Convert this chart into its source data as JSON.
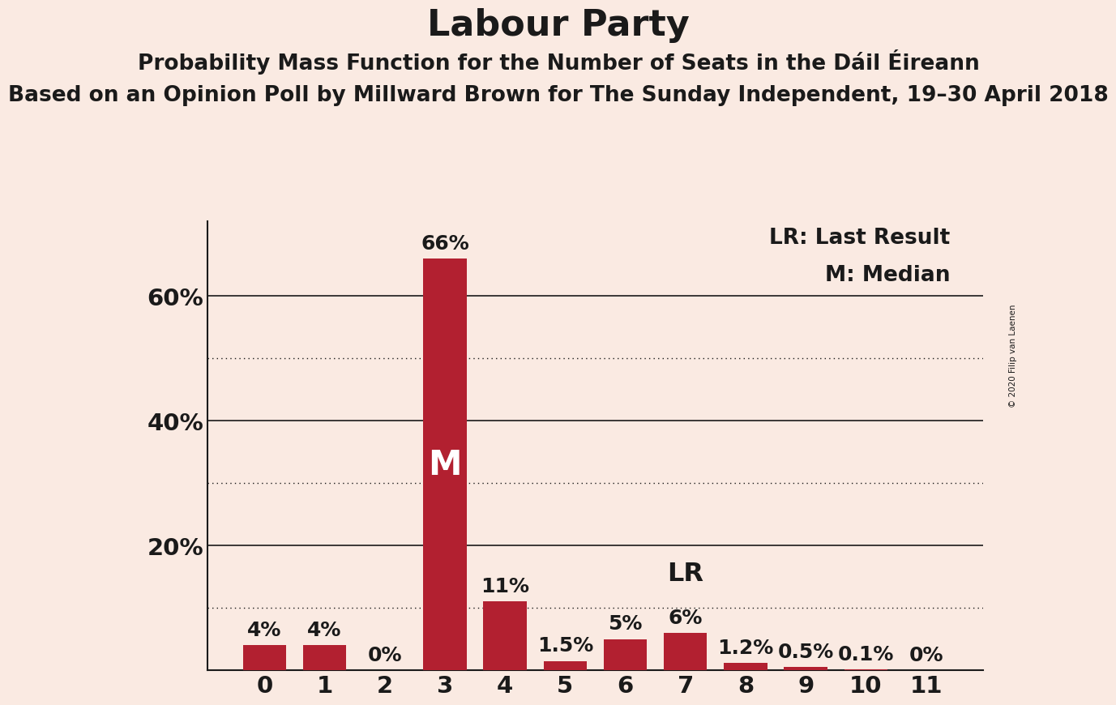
{
  "title": "Labour Party",
  "subtitle": "Probability Mass Function for the Number of Seats in the Dáil Éireann",
  "subtitle2": "Based on an Opinion Poll by Millward Brown for The Sunday Independent, 19–30 April 2018",
  "copyright": "© 2020 Filip van Laenen",
  "categories": [
    0,
    1,
    2,
    3,
    4,
    5,
    6,
    7,
    8,
    9,
    10,
    11
  ],
  "values": [
    4.0,
    4.0,
    0.0,
    66.0,
    11.0,
    1.5,
    5.0,
    6.0,
    1.2,
    0.5,
    0.1,
    0.0
  ],
  "bar_color": "#b22030",
  "background_color": "#faeae2",
  "text_color": "#1a1a1a",
  "bar_labels": [
    "4%",
    "4%",
    "0%",
    "66%",
    "11%",
    "1.5%",
    "5%",
    "6%",
    "1.2%",
    "0.5%",
    "0.1%",
    "0%"
  ],
  "median_bar": 3,
  "lr_bar": 7,
  "ylim": [
    0,
    72
  ],
  "yticks": [
    0,
    20,
    40,
    60
  ],
  "legend_lr": "LR: Last Result",
  "legend_m": "M: Median",
  "title_fontsize": 32,
  "subtitle_fontsize": 19,
  "subtitle2_fontsize": 19,
  "tick_fontsize": 21,
  "bar_label_fontsize": 18,
  "legend_fontsize": 19,
  "annotation_fontsize": 23,
  "median_label_fontsize": 30
}
